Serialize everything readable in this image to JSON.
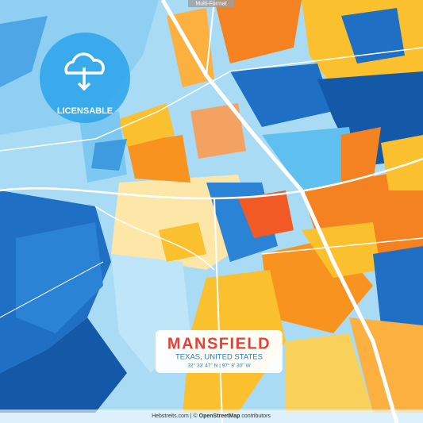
{
  "badge": "Multi-Format",
  "license_badge": "LICENSABLE",
  "title_box": {
    "title": "MANSFIELD",
    "subtitle": "TEXAS, UNITED STATES",
    "coordinates": "32° 33' 47'' N | 97° 8' 30'' W"
  },
  "footer": {
    "site": "Hebstreits.com",
    "separator": "|",
    "copyright": "©",
    "source": "OpenStreetMap",
    "suffix": "contributors"
  }
}
